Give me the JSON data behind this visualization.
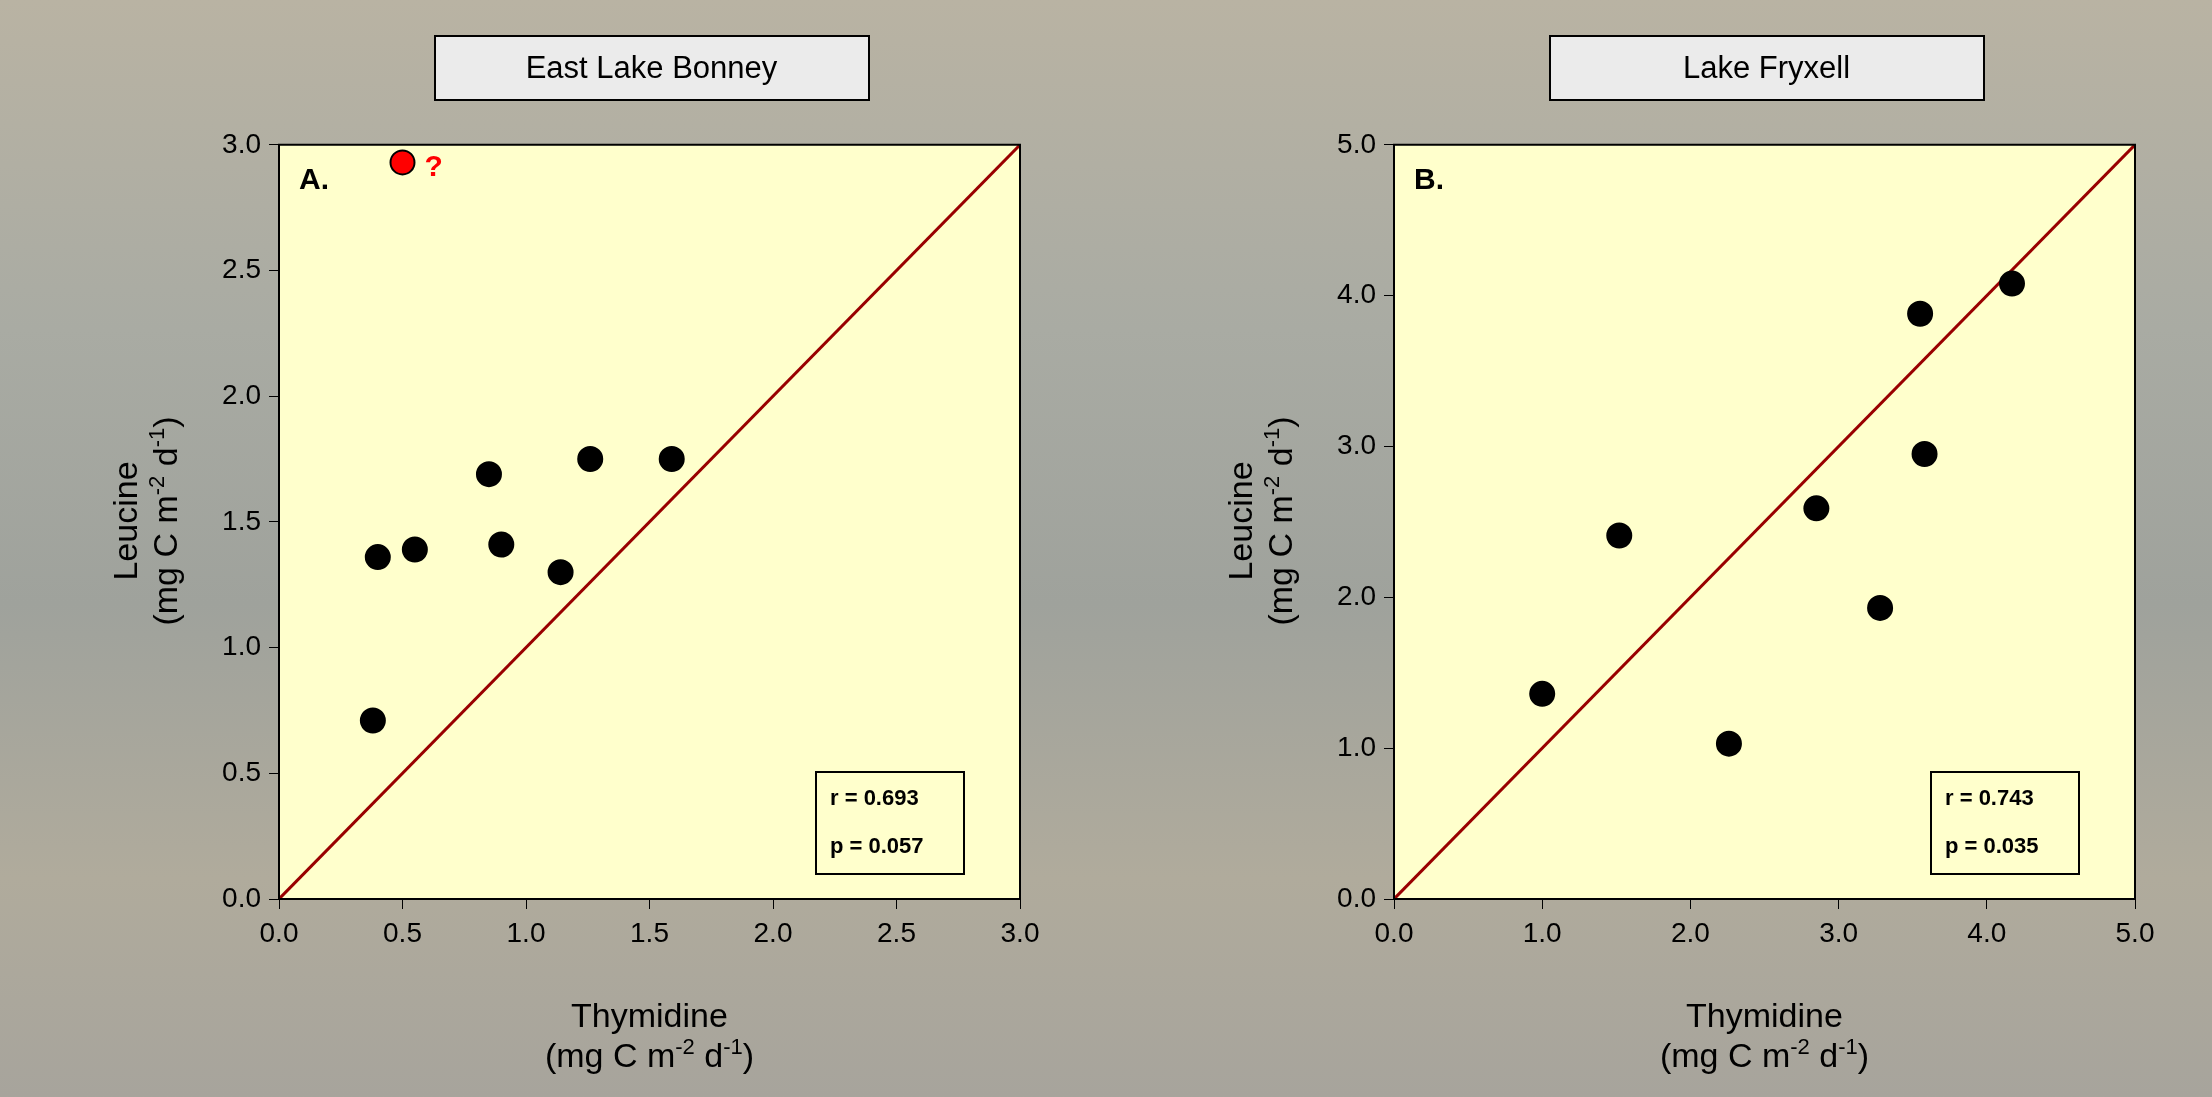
{
  "chart_data": [
    {
      "type": "scatter",
      "title": "East Lake Bonney",
      "xlabel": "Thymidine\n(mg C m$^{-2}$ d$^{-1}$)",
      "ylabel": "Leucine\n(mg C m$^{-2}$ d$^{-1}$)",
      "xlim": [
        0,
        3
      ],
      "ylim": [
        0,
        3
      ],
      "xticks": [
        {
          "value": 0,
          "label": "0.0"
        },
        {
          "value": 0.5,
          "label": "0.5"
        },
        {
          "value": 1,
          "label": "1.0"
        },
        {
          "value": 1.5,
          "label": "1.5"
        },
        {
          "value": 2,
          "label": "2.0"
        },
        {
          "value": 2.5,
          "label": "2.5"
        },
        {
          "value": 3,
          "label": "3.0"
        }
      ],
      "yticks": [
        {
          "value": 0,
          "label": "0.0"
        },
        {
          "value": 0.5,
          "label": "0.5"
        },
        {
          "value": 1,
          "label": "1.0"
        },
        {
          "value": 1.5,
          "label": "1.5"
        },
        {
          "value": 2,
          "label": "2.0"
        },
        {
          "value": 2.5,
          "label": "2.5"
        },
        {
          "value": 3,
          "label": "3.0"
        }
      ],
      "grid": false,
      "legend": false,
      "series": [
        {
          "marker": "circle",
          "x": [
            0.5,
            0.38,
            0.4,
            0.55,
            0.85,
            0.9,
            1.14,
            1.26,
            1.59
          ],
          "values": [
            2.93,
            0.71,
            1.36,
            1.39,
            1.69,
            1.41,
            1.3,
            1.75,
            1.75
          ],
          "colors": [
            "#ff0000",
            "#000000",
            "#000000",
            "#000000",
            "#000000",
            "#000000",
            "#000000",
            "#000000",
            "#000000"
          ]
        },
        {
          "type": "line",
          "marker": "none",
          "x": [
            0,
            3
          ],
          "values": [
            0,
            3
          ],
          "color": "#990000"
        }
      ],
      "annotations": [
        "A.",
        "r = 0.693",
        "p = 0.057",
        {
          "text": "?",
          "x": 0.5,
          "y": 2.93
        }
      ]
    },
    {
      "type": "scatter",
      "title": "Lake Fryxell",
      "xlabel": "Thymidine\n(mg C m$^{-2}$ d$^{-1}$)",
      "ylabel": "Leucine\n(mg C m$^{-2}$ d$^{-1}$)",
      "xlim": [
        0,
        5
      ],
      "ylim": [
        0,
        5
      ],
      "xticks": [
        {
          "value": 0,
          "label": "0.0"
        },
        {
          "value": 1,
          "label": "1.0"
        },
        {
          "value": 2,
          "label": "2.0"
        },
        {
          "value": 3,
          "label": "3.0"
        },
        {
          "value": 4,
          "label": "4.0"
        },
        {
          "value": 5,
          "label": "5.0"
        }
      ],
      "yticks": [
        {
          "value": 0,
          "label": "0.0"
        },
        {
          "value": 1,
          "label": "1.0"
        },
        {
          "value": 2,
          "label": "2.0"
        },
        {
          "value": 3,
          "label": "3.0"
        },
        {
          "value": 4,
          "label": "4.0"
        },
        {
          "value": 5,
          "label": "5.0"
        }
      ],
      "grid": false,
      "legend": false,
      "series": [
        {
          "marker": "circle",
          "x": [
            1.0,
            1.52,
            2.26,
            2.85,
            3.28,
            3.55,
            3.58,
            4.17
          ],
          "values": [
            1.36,
            2.41,
            1.03,
            2.59,
            1.93,
            3.88,
            2.95,
            4.08
          ],
          "color": "#000000"
        },
        {
          "type": "line",
          "marker": "none",
          "x": [
            0,
            5
          ],
          "values": [
            0,
            5
          ],
          "color": "#990000"
        }
      ],
      "annotations": [
        "B.",
        "r = 0.743",
        "p = 0.035"
      ]
    }
  ]
}
